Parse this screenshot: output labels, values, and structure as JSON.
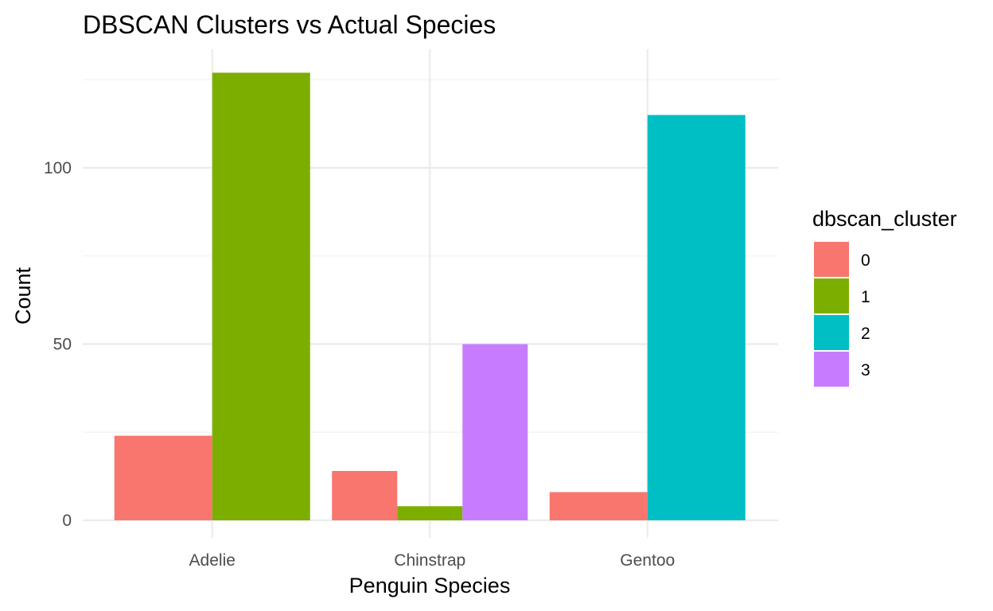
{
  "chart_data": {
    "type": "bar",
    "title": "DBSCAN Clusters vs Actual Species",
    "xlabel": "Penguin Species",
    "ylabel": "Count",
    "categories": [
      "Adelie",
      "Chinstrap",
      "Gentoo"
    ],
    "ylim": [
      0,
      130
    ],
    "yticks": [
      0,
      50,
      100
    ],
    "grid": true,
    "legend": {
      "title": "dbscan_cluster",
      "placement": "right"
    },
    "series": [
      {
        "name": "0",
        "color": "#F8766D",
        "values": [
          24,
          14,
          8
        ]
      },
      {
        "name": "1",
        "color": "#7CAE00",
        "values": [
          127,
          4,
          null
        ]
      },
      {
        "name": "2",
        "color": "#00BFC4",
        "values": [
          null,
          null,
          115
        ]
      },
      {
        "name": "3",
        "color": "#C77CFF",
        "values": [
          null,
          50,
          null
        ]
      }
    ]
  }
}
